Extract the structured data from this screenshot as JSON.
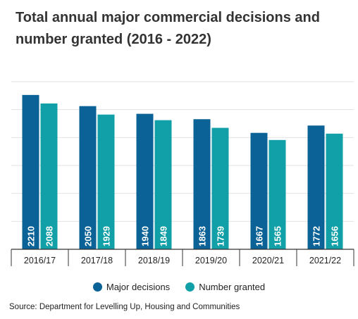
{
  "title": "Total annual major commercial decisions and number granted (2016 - 2022)",
  "source": "Source: Department for Levelling Up, Housing and Communities",
  "colors": {
    "major": "#0b6296",
    "granted": "#11a0a8",
    "grid": "#e2e2e2",
    "axis": "#333333"
  },
  "chart_data": {
    "type": "bar",
    "title": "Total annual major commercial decisions and number granted (2016 - 2022)",
    "categories": [
      "2016/17",
      "2017/18",
      "2018/19",
      "2019/20",
      "2020/21",
      "2021/22"
    ],
    "series": [
      {
        "name": "Major decisions",
        "values": [
          2210,
          2050,
          1940,
          1863,
          1667,
          1772
        ]
      },
      {
        "name": "Number granted",
        "values": [
          2088,
          1929,
          1849,
          1739,
          1565,
          1656
        ]
      }
    ],
    "ylim": [
      0,
      2400
    ],
    "grid": true,
    "legend": "bottom"
  }
}
